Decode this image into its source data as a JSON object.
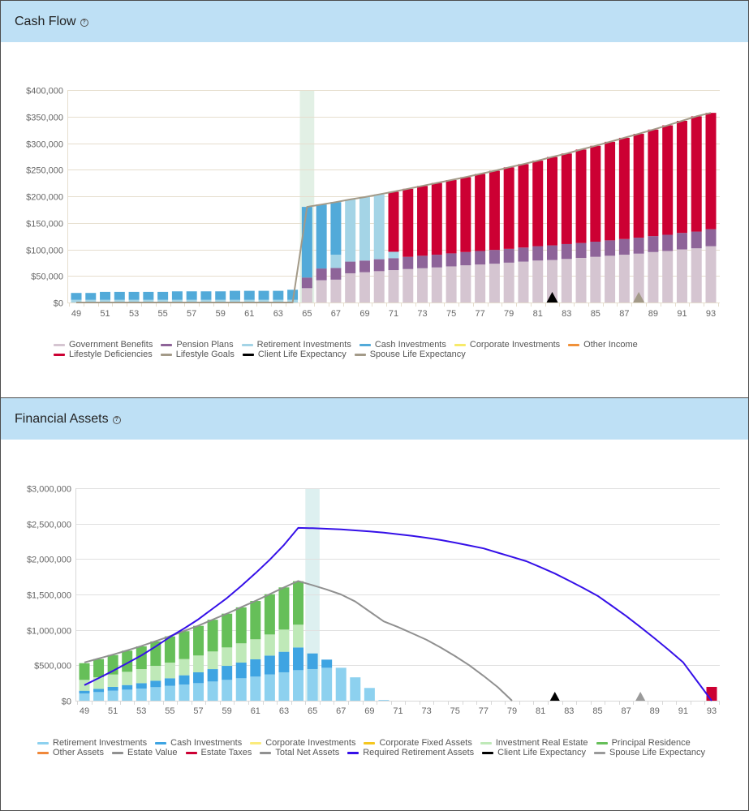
{
  "panels": {
    "cashflow": {
      "title": "Cash Flow",
      "help_icon": "question-circle-icon",
      "help_glyph": "?"
    },
    "assets": {
      "title": "Financial Assets",
      "help_icon": "question-circle-icon",
      "help_glyph": "?"
    }
  },
  "chart_data": [
    {
      "type": "bar",
      "stacked": true,
      "title": "Cash Flow",
      "xlabel": "",
      "ylabel": "",
      "x": [
        49,
        50,
        51,
        52,
        53,
        54,
        55,
        56,
        57,
        58,
        59,
        60,
        61,
        62,
        63,
        64,
        65,
        66,
        67,
        68,
        69,
        70,
        71,
        72,
        73,
        74,
        75,
        76,
        77,
        78,
        79,
        80,
        81,
        82,
        83,
        84,
        85,
        86,
        87,
        88,
        89,
        90,
        91,
        92,
        93
      ],
      "x_tick_labels": [
        "49",
        "51",
        "53",
        "55",
        "57",
        "59",
        "61",
        "63",
        "65",
        "67",
        "69",
        "71",
        "73",
        "75",
        "77",
        "79",
        "81",
        "83",
        "85",
        "87",
        "89",
        "91",
        "93"
      ],
      "y_range": [
        0,
        400000
      ],
      "y_tick_values": [
        0,
        50000,
        100000,
        150000,
        200000,
        250000,
        300000,
        350000,
        400000
      ],
      "y_tick_labels": [
        "$0",
        "$50,000",
        "$100,000",
        "$150,000",
        "$200,000",
        "$250,000",
        "$300,000",
        "$350,000",
        "$400,000"
      ],
      "grid": true,
      "legend_placement": "bottom",
      "highlight_x": 65,
      "series": [
        {
          "name": "Government Benefits",
          "type": "bar",
          "color": "#d5c5d1",
          "values": [
            0,
            0,
            0,
            0,
            0,
            0,
            0,
            0,
            0,
            0,
            0,
            0,
            0,
            0,
            0,
            0,
            27000,
            42000,
            43000,
            55000,
            57000,
            59000,
            61000,
            63000,
            64500,
            66000,
            68000,
            70000,
            71500,
            73000,
            75000,
            77000,
            79000,
            80000,
            82000,
            84000,
            86000,
            88000,
            90000,
            92000,
            95000,
            97000,
            100000,
            102000,
            106000
          ]
        },
        {
          "name": "Pension Plans",
          "type": "bar",
          "color": "#8e6499",
          "values": [
            0,
            0,
            0,
            0,
            0,
            0,
            0,
            0,
            0,
            0,
            0,
            0,
            0,
            0,
            0,
            0,
            20000,
            22000,
            22000,
            22000,
            22000,
            22500,
            22500,
            23000,
            23500,
            24000,
            24500,
            25000,
            25500,
            26000,
            26000,
            26500,
            27000,
            27500,
            28000,
            28000,
            28500,
            29000,
            29500,
            30000,
            30000,
            30500,
            31000,
            31500,
            32000
          ]
        },
        {
          "name": "Retirement Investments",
          "type": "bar",
          "color": "#a4d4e6",
          "values": [
            5000,
            5000,
            5000,
            5000,
            5000,
            5000,
            5000,
            5000,
            5000,
            5000,
            5000,
            5000,
            5000,
            5000,
            5000,
            5000,
            0,
            0,
            25000,
            117000,
            119500,
            122000,
            12000,
            0,
            0,
            0,
            0,
            0,
            0,
            0,
            0,
            0,
            0,
            0,
            0,
            0,
            0,
            0,
            0,
            0,
            0,
            0,
            0,
            0,
            0
          ]
        },
        {
          "name": "Cash Investments",
          "type": "bar",
          "color": "#52aad9",
          "values": [
            13000,
            13000,
            15000,
            15000,
            15000,
            15000,
            15000,
            16000,
            16000,
            16000,
            16000,
            17000,
            17000,
            17000,
            17000,
            19000,
            133000,
            120500,
            99000,
            0,
            0,
            0,
            0,
            0,
            0,
            0,
            0,
            0,
            0,
            0,
            0,
            0,
            0,
            0,
            0,
            0,
            0,
            0,
            0,
            0,
            0,
            0,
            0,
            0,
            0
          ]
        },
        {
          "name": "Lifestyle Deficiencies",
          "type": "bar",
          "color": "#cc0033",
          "values": [
            0,
            0,
            0,
            0,
            0,
            0,
            0,
            0,
            0,
            0,
            0,
            0,
            0,
            0,
            0,
            0,
            0,
            0,
            0,
            0,
            0,
            0,
            113000,
            128000,
            131500,
            135000,
            138000,
            141000,
            145000,
            149000,
            153500,
            157000,
            161000,
            166500,
            170500,
            176000,
            180500,
            185500,
            190500,
            195500,
            200500,
            206000,
            211000,
            217000,
            219000
          ]
        },
        {
          "name": "Lifestyle Goals",
          "type": "line",
          "color": "#a39a88",
          "values": [
            0,
            0,
            0,
            0,
            0,
            0,
            0,
            0,
            0,
            0,
            0,
            0,
            0,
            0,
            0,
            0,
            180000,
            184500,
            189000,
            194000,
            198500,
            203500,
            208500,
            214000,
            219500,
            225000,
            230500,
            236000,
            242000,
            248000,
            254500,
            260500,
            267000,
            274000,
            280500,
            288000,
            295000,
            302500,
            310000,
            317500,
            325500,
            333500,
            342000,
            350500,
            357000
          ]
        }
      ],
      "markers": [
        {
          "name": "Client Life Expectancy",
          "x": 82,
          "color": "#000000"
        },
        {
          "name": "Spouse Life Expectancy",
          "x": 88,
          "color": "#a39a88"
        }
      ],
      "legend": [
        {
          "label": "Government Benefits",
          "color": "#d5c5d1"
        },
        {
          "label": "Pension Plans",
          "color": "#8e6499"
        },
        {
          "label": "Retirement Investments",
          "color": "#a4d4e6"
        },
        {
          "label": "Cash Investments",
          "color": "#52aad9"
        },
        {
          "label": "Corporate Investments",
          "color": "#f7ea6a"
        },
        {
          "label": "Other Income",
          "color": "#f0913a"
        },
        {
          "label": "Lifestyle Deficiencies",
          "color": "#cc0033"
        },
        {
          "label": "Lifestyle Goals",
          "color": "#a39a88"
        },
        {
          "label": "Client Life Expectancy",
          "color": "#000000"
        },
        {
          "label": "Spouse Life Expectancy",
          "color": "#a39a88"
        }
      ]
    },
    {
      "type": "bar",
      "stacked": true,
      "title": "Financial Assets",
      "xlabel": "",
      "ylabel": "",
      "x": [
        49,
        50,
        51,
        52,
        53,
        54,
        55,
        56,
        57,
        58,
        59,
        60,
        61,
        62,
        63,
        64,
        65,
        66,
        67,
        68,
        69,
        70,
        71,
        72,
        73,
        74,
        75,
        76,
        77,
        78,
        79,
        80,
        81,
        82,
        83,
        84,
        85,
        86,
        87,
        88,
        89,
        90,
        91,
        92,
        93
      ],
      "x_tick_labels": [
        "49",
        "51",
        "53",
        "55",
        "57",
        "59",
        "61",
        "63",
        "65",
        "67",
        "69",
        "71",
        "73",
        "75",
        "77",
        "79",
        "81",
        "83",
        "85",
        "87",
        "89",
        "91",
        "93"
      ],
      "y_range": [
        0,
        3000000
      ],
      "y_tick_values": [
        0,
        500000,
        1000000,
        1500000,
        2000000,
        2500000,
        3000000
      ],
      "y_tick_labels": [
        "$0",
        "$500,000",
        "$1,000,000",
        "$1,500,000",
        "$2,000,000",
        "$2,500,000",
        "$3,000,000"
      ],
      "grid": true,
      "legend_placement": "bottom",
      "highlight_x": 65,
      "series": [
        {
          "name": "Retirement Investments",
          "type": "bar",
          "color": "#8dd1ef",
          "values": [
            103000,
            122000,
            141000,
            156000,
            172000,
            191000,
            210000,
            229000,
            248000,
            271000,
            294000,
            317000,
            340000,
            370000,
            401000,
            431000,
            447000,
            465000,
            465000,
            330000,
            180000,
            10000,
            0,
            0,
            0,
            0,
            0,
            0,
            0,
            0,
            0,
            0,
            0,
            0,
            0,
            0,
            0,
            0,
            0,
            0,
            0,
            0,
            0,
            0,
            0
          ]
        },
        {
          "name": "Cash Investments",
          "type": "bar",
          "color": "#3ea4e2",
          "values": [
            38000,
            46000,
            54000,
            65000,
            76000,
            91000,
            107000,
            130000,
            153000,
            175000,
            198000,
            221000,
            244000,
            267000,
            290000,
            321000,
            220000,
            115000,
            0,
            0,
            0,
            0,
            0,
            0,
            0,
            0,
            0,
            0,
            0,
            0,
            0,
            0,
            0,
            0,
            0,
            0,
            0,
            0,
            0,
            0,
            0,
            0,
            0,
            0,
            0
          ]
        },
        {
          "name": "Investment Real Estate",
          "type": "bar",
          "color": "#bfe9b8",
          "values": [
            153000,
            164000,
            175000,
            187000,
            198000,
            210000,
            221000,
            229000,
            237000,
            249000,
            260000,
            272000,
            283000,
            298000,
            313000,
            321000,
            0,
            0,
            0,
            0,
            0,
            0,
            0,
            0,
            0,
            0,
            0,
            0,
            0,
            0,
            0,
            0,
            0,
            0,
            0,
            0,
            0,
            0,
            0,
            0,
            0,
            0,
            0,
            0,
            0
          ]
        },
        {
          "name": "Principal Residence",
          "type": "bar",
          "color": "#66bf59",
          "values": [
            236000,
            256000,
            275000,
            298000,
            321000,
            345000,
            370000,
            394000,
            419000,
            448000,
            477000,
            508000,
            541000,
            569000,
            596000,
            614000,
            0,
            0,
            0,
            0,
            0,
            0,
            0,
            0,
            0,
            0,
            0,
            0,
            0,
            0,
            0,
            0,
            0,
            0,
            0,
            0,
            0,
            0,
            0,
            0,
            0,
            0,
            0,
            0,
            0
          ]
        },
        {
          "name": "Estate Taxes",
          "type": "bar",
          "color": "#cc0033",
          "values": [
            0,
            0,
            0,
            0,
            0,
            0,
            0,
            0,
            0,
            0,
            0,
            0,
            0,
            0,
            0,
            0,
            0,
            0,
            0,
            0,
            0,
            0,
            0,
            0,
            0,
            0,
            0,
            0,
            0,
            0,
            0,
            0,
            0,
            0,
            0,
            0,
            0,
            0,
            0,
            0,
            0,
            0,
            0,
            0,
            195000
          ]
        },
        {
          "name": "Total Net Assets",
          "type": "line",
          "color": "#909090",
          "values": [
            540000,
            595000,
            650000,
            710000,
            772000,
            840000,
            910000,
            985000,
            1060000,
            1145000,
            1230000,
            1320000,
            1410000,
            1505000,
            1600000,
            1690000,
            1630000,
            1570000,
            1500000,
            1400000,
            1260000,
            1120000,
            1040000,
            950000,
            860000,
            750000,
            630000,
            500000,
            350000,
            190000,
            0,
            null,
            null,
            null,
            null,
            null,
            null,
            null,
            null,
            null,
            null,
            null,
            null,
            null,
            null
          ]
        },
        {
          "name": "Required Retirement Assets",
          "type": "line",
          "color": "#3510e8",
          "values": [
            220000,
            320000,
            420000,
            530000,
            640000,
            765000,
            900000,
            1020000,
            1150000,
            1300000,
            1450000,
            1620000,
            1800000,
            1990000,
            2200000,
            2440000,
            2435000,
            2428000,
            2418000,
            2405000,
            2390000,
            2372000,
            2350000,
            2327000,
            2300000,
            2268000,
            2232000,
            2192000,
            2150000,
            2090000,
            2030000,
            1970000,
            1885000,
            1795000,
            1695000,
            1590000,
            1480000,
            1340000,
            1195000,
            1040000,
            880000,
            715000,
            540000,
            270000,
            0
          ]
        }
      ],
      "markers": [
        {
          "name": "Client Life Expectancy",
          "x": 82,
          "color": "#000000"
        },
        {
          "name": "Spouse Life Expectancy",
          "x": 88,
          "color": "#9a9a9a"
        }
      ],
      "legend": [
        {
          "label": "Retirement Investments",
          "color": "#8dd1ef"
        },
        {
          "label": "Cash Investments",
          "color": "#3ea4e2"
        },
        {
          "label": "Corporate Investments",
          "color": "#fbeb7c"
        },
        {
          "label": "Corporate Fixed Assets",
          "color": "#f5c71f"
        },
        {
          "label": "Investment Real Estate",
          "color": "#bfe9b8"
        },
        {
          "label": "Principal Residence",
          "color": "#66bf59"
        },
        {
          "label": "Other Assets",
          "color": "#f0883a"
        },
        {
          "label": "Estate Value",
          "color": "#909090"
        },
        {
          "label": "Estate Taxes",
          "color": "#cc0033"
        },
        {
          "label": "Total Net Assets",
          "color": "#909090"
        },
        {
          "label": "Required Retirement Assets",
          "color": "#3510e8"
        },
        {
          "label": "Client Life Expectancy",
          "color": "#000000"
        },
        {
          "label": "Spouse Life Expectancy",
          "color": "#9a9a9a"
        }
      ]
    }
  ]
}
